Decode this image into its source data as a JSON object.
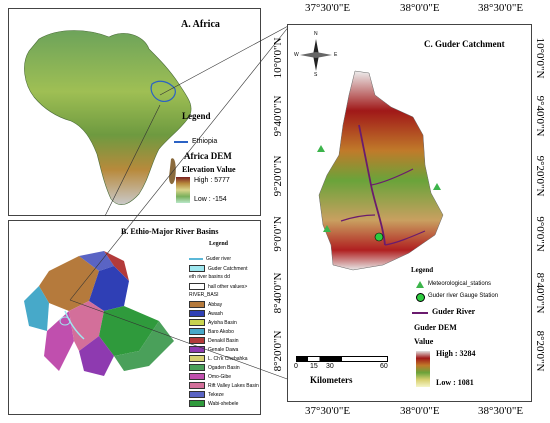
{
  "panel_a": {
    "title": "A. Africa",
    "legend_title": "Legend",
    "ethiopia_label": "Ethiopia",
    "dem_title": "Africa DEM",
    "elev_title": "Elevation Value",
    "high": "High : 5777",
    "low": "Low : -154"
  },
  "panel_b": {
    "title": "B. Ethio-Major River Basins",
    "legend_title": "Legend",
    "items": [
      {
        "label": "Guder river",
        "color": "#5bb8d8"
      },
      {
        "label": "Guder Catchment",
        "color": "#9fe8f0"
      },
      {
        "label": "eth river basins dd",
        "color": ""
      },
      {
        "label": "hall other values>",
        "color": "#ffffff"
      },
      {
        "label": "RIVER_BASI",
        "color": ""
      },
      {
        "label": "Abbay",
        "color": "#b57a3c"
      },
      {
        "label": "Awash",
        "color": "#2f3fb5"
      },
      {
        "label": "Ayisha Basin",
        "color": "#c8d450"
      },
      {
        "label": "Baro Akobo",
        "color": "#47a9c9"
      },
      {
        "label": "Denakil Basin",
        "color": "#b33a3a"
      },
      {
        "label": "Genale Dawa",
        "color": "#8e3ab0"
      },
      {
        "label": "L. Ch'k Chebahka",
        "color": "#d6d070"
      },
      {
        "label": "Ogaden Basin",
        "color": "#4aa05a"
      },
      {
        "label": "Omo-Gibe",
        "color": "#c04fae"
      },
      {
        "label": "Rift Valley Lakes Basin",
        "color": "#d36f9a"
      },
      {
        "label": "Tekeze",
        "color": "#5a64c4"
      },
      {
        "label": "Wabi-shebele",
        "color": "#2f9a3c"
      }
    ]
  },
  "panel_c": {
    "title": "C. Guder Catchment",
    "legend_title": "Legend",
    "met_label": "Meteorological_stations",
    "gauge_label": "Guder river Gauge Station",
    "river_label": "Guder River",
    "dem_title": "Guder DEM",
    "value_label": "Value",
    "high": "High : 3284",
    "low": "Low : 1081",
    "scale_ticks": [
      "0",
      "15",
      "30",
      "60"
    ],
    "scale_unit": "Kilometers",
    "compass": {
      "n": "N",
      "s": "S",
      "e": "E",
      "w": "W"
    },
    "lon_labels": [
      "37°30'0\"E",
      "38°0'0\"E",
      "38°30'0\"E"
    ],
    "lat_labels": [
      "10°0'0\"N",
      "9°40'0\"N",
      "9°20'0\"N",
      "9°0'0\"N",
      "8°40'0\"N",
      "8°20'0\"N"
    ],
    "colors": {
      "river": "#6a1b6e",
      "met": "#3cb44b",
      "gauge": "#2ecc40"
    }
  }
}
